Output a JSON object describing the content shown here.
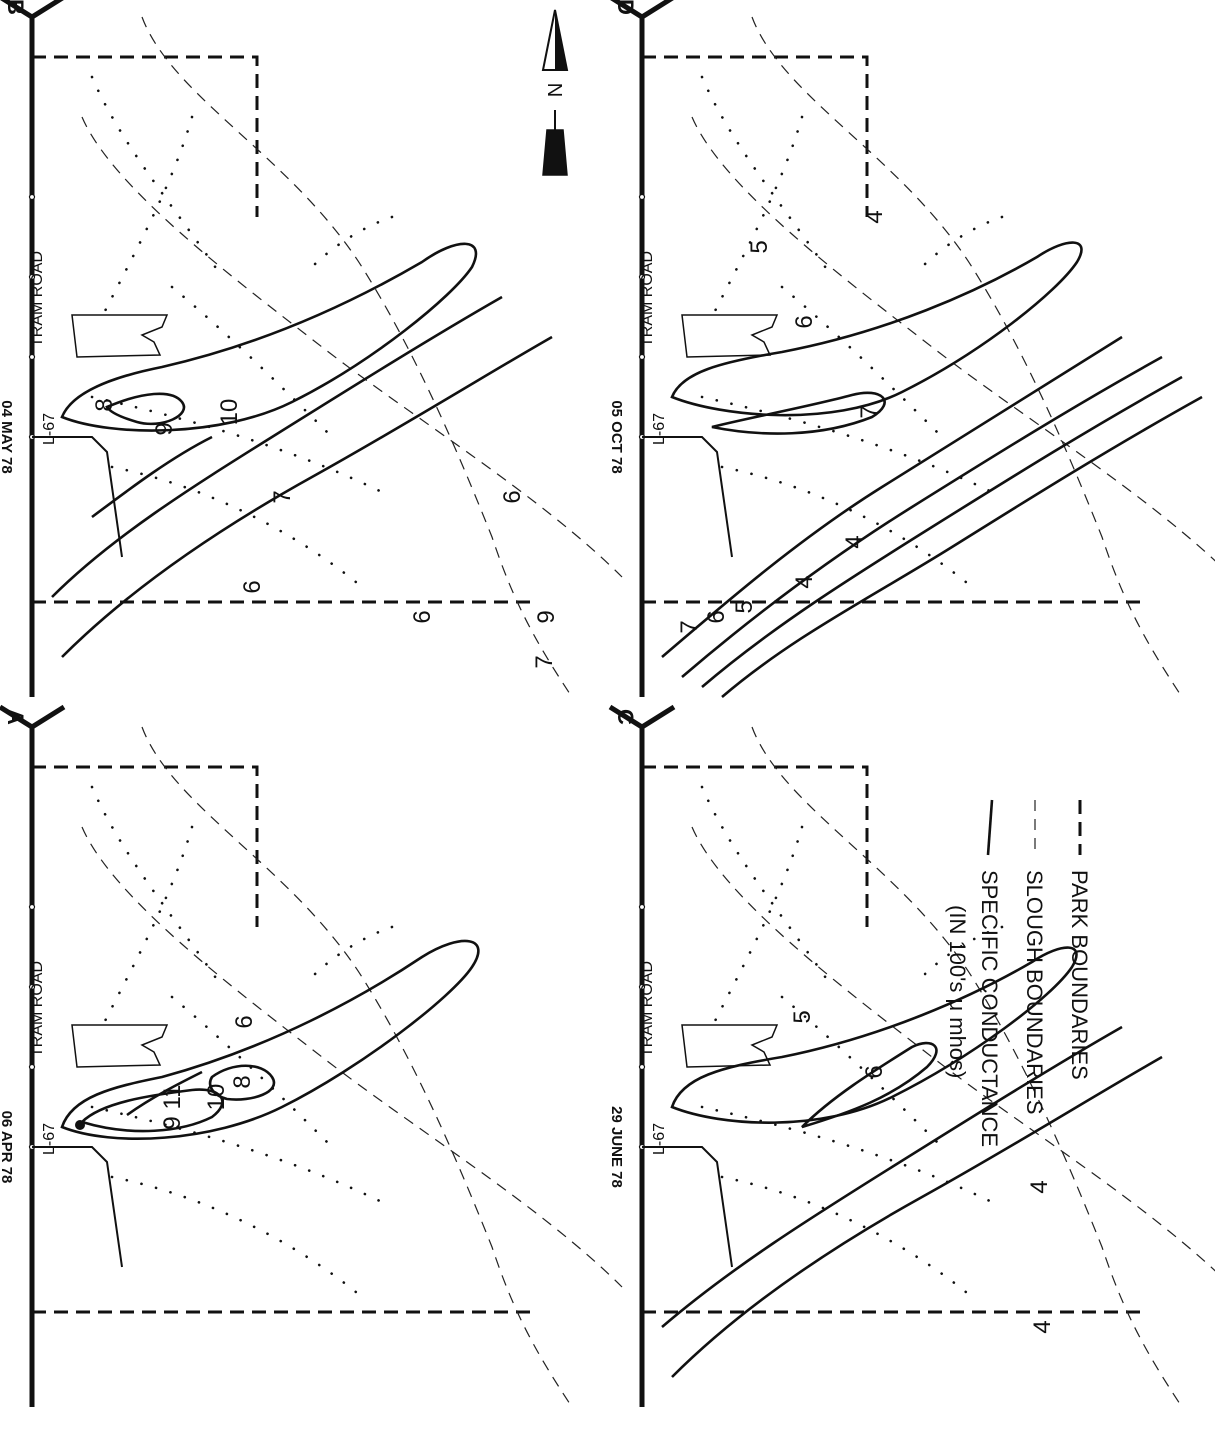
{
  "panels": {
    "A": {
      "letter": "A",
      "date": "06 APR 78",
      "tram_road": "TRAM ROAD",
      "canal": "L-67",
      "contour_labels": [
        "6",
        "8",
        "10",
        "11",
        "9"
      ]
    },
    "B": {
      "letter": "B",
      "date": "04 MAY 78",
      "tram_road": "TRAM ROAD",
      "canal": "L-67",
      "contour_labels": [
        "10",
        "9",
        "8",
        "7",
        "6",
        "6",
        "9",
        "6",
        "7"
      ]
    },
    "C": {
      "letter": "C",
      "date": "29 JUNE 78",
      "tram_road": "TRAM ROAD",
      "canal": "L-67",
      "contour_labels": [
        "6",
        "5",
        "4",
        "4"
      ]
    },
    "D": {
      "letter": "D",
      "date": "05 OCT 78",
      "tram_road": "TRAM ROAD",
      "canal": "L-67",
      "contour_labels": [
        "7",
        "6",
        "5",
        "4",
        "7",
        "6",
        "5",
        "4",
        "4"
      ]
    }
  },
  "north_arrow": {
    "label": "N"
  },
  "legend": {
    "items": [
      {
        "line": "park-boundary",
        "label": "PARK BOUNDARIES"
      },
      {
        "line": "slough-boundary",
        "label": "SLOUGH BOUNDARIES"
      },
      {
        "line": "conductance-contour",
        "label": "SPECIFIC CONDUCTANCE"
      }
    ],
    "units": "(IN 100's μ mhos)"
  }
}
